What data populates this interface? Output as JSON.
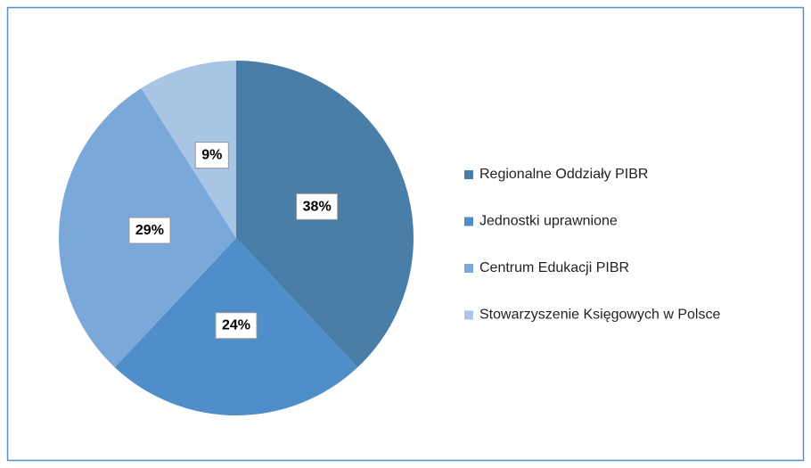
{
  "chart_data": {
    "type": "pie",
    "categories": [
      "Regionalne Oddziały PIBR",
      "Jednostki uprawnione",
      "Centrum Edukacji PIBR",
      "Stowarzyszenie Księgowych w Polsce"
    ],
    "values": [
      38,
      24,
      29,
      9
    ],
    "value_labels": [
      "38%",
      "24%",
      "29%",
      "9%"
    ],
    "colors": [
      "#487ea8",
      "#4f8ec8",
      "#79a8d9",
      "#a8c5e5"
    ],
    "legend": "right"
  }
}
